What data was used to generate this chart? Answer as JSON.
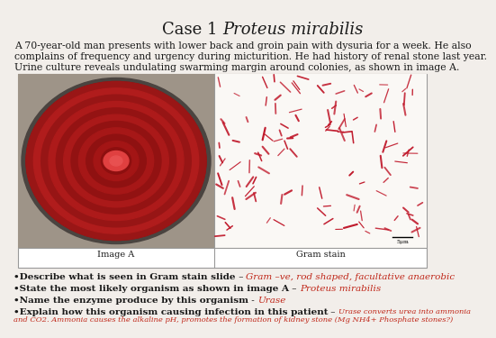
{
  "title_normal": "Case 1 ",
  "title_italic": "Proteus mirabilis",
  "title_fontsize": 13,
  "background_color": "#f2eeea",
  "body_line1": "A 70-year-old man presents with lower back and groin pain with dysuria for a week. He also",
  "body_line2": "complains of frequency and urgency during micturition. He had history of renal stone last year.",
  "body_line3": "Urine culture reveals undulating swarming margin around colonies, as shown in image A.",
  "body_fontsize": 7.8,
  "image_a_label": "Image A",
  "gram_stain_label": "Gram stain",
  "b1_black": "•Describe what is seen in Gram stain slide",
  "b1_dash": " – ",
  "b1_red": "Gram –ve, rod shaped, facultative anaerobic",
  "b2_black": "•State the most likely organism as shown in image A",
  "b2_dash": " – ",
  "b2_red": "Proteus mirabilis",
  "b3_black": "•Name the enzyme produce by this organism",
  "b3_dash": " - ",
  "b3_red": "Urase",
  "b4_black": "•Explain how this organism causing infection in this patient",
  "b4_dash": " – ",
  "b4_red_line1": "Urase converts urea into ammonia",
  "b4_red_line2": "and CO2. Ammonia causes the alkaline pH, promotes the formation of kidney stone (Mg NH4+ Phosphate stones?)",
  "black": "#1a1a1a",
  "red": "#c0281a",
  "bullet_fs": 7.5,
  "bullet_bold_fs": 7.5,
  "b4_small_fs": 6.0
}
